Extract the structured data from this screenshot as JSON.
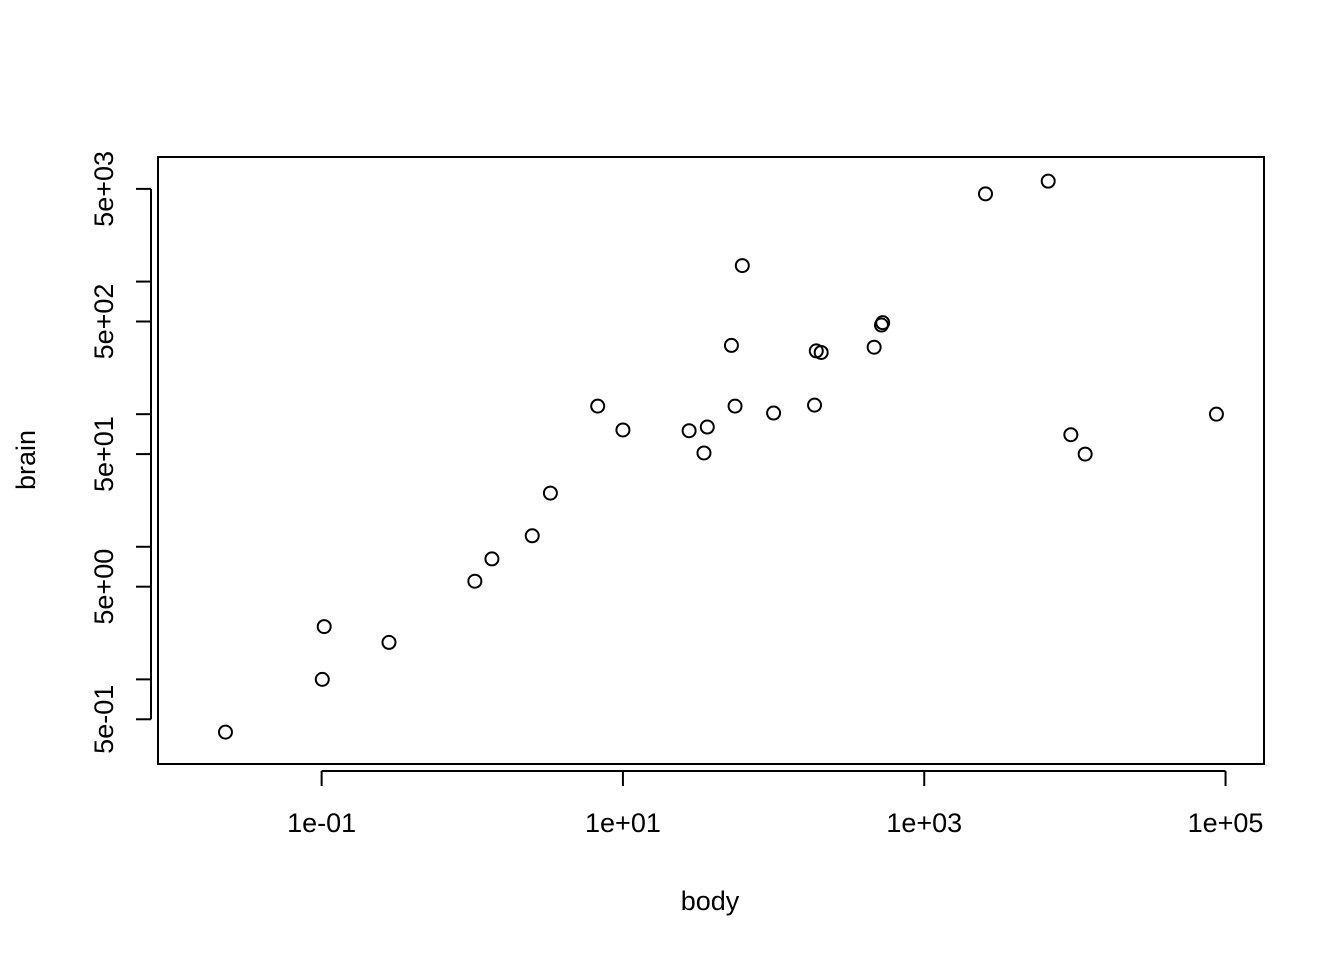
{
  "chart_data": {
    "type": "scatter",
    "title": "",
    "xlabel": "body",
    "ylabel": "brain",
    "x_scale": "log",
    "y_scale": "log",
    "xlim": [
      0.0082,
      180000
    ],
    "ylim": [
      0.23,
      8700
    ],
    "grid": false,
    "legend": "none",
    "x_ticks": [
      {
        "value": 0.1,
        "label": "1e-01"
      },
      {
        "value": 10,
        "label": "1e+01"
      },
      {
        "value": 1000,
        "label": "1e+03"
      },
      {
        "value": 100000,
        "label": "1e+05"
      }
    ],
    "y_ticks": [
      {
        "value": 0.5,
        "label": "5e-01"
      },
      {
        "value": 1,
        "label": ""
      },
      {
        "value": 5,
        "label": "5e+00"
      },
      {
        "value": 10,
        "label": ""
      },
      {
        "value": 50,
        "label": "5e+01"
      },
      {
        "value": 100,
        "label": ""
      },
      {
        "value": 500,
        "label": "5e+02"
      },
      {
        "value": 1000,
        "label": ""
      },
      {
        "value": 5000,
        "label": "5e+03"
      }
    ],
    "points": [
      {
        "x": 0.023,
        "y": 0.4
      },
      {
        "x": 0.104,
        "y": 2.5
      },
      {
        "x": 0.101,
        "y": 1.0
      },
      {
        "x": 0.28,
        "y": 1.9
      },
      {
        "x": 1.04,
        "y": 5.5
      },
      {
        "x": 1.35,
        "y": 8.1
      },
      {
        "x": 2.5,
        "y": 12.1
      },
      {
        "x": 3.3,
        "y": 25.4
      },
      {
        "x": 6.8,
        "y": 115
      },
      {
        "x": 10,
        "y": 76
      },
      {
        "x": 27.5,
        "y": 75
      },
      {
        "x": 34.5,
        "y": 51
      },
      {
        "x": 36.3,
        "y": 80
      },
      {
        "x": 52.5,
        "y": 330
      },
      {
        "x": 55.5,
        "y": 115
      },
      {
        "x": 62,
        "y": 1320
      },
      {
        "x": 100,
        "y": 102
      },
      {
        "x": 187,
        "y": 117
      },
      {
        "x": 192,
        "y": 300
      },
      {
        "x": 207,
        "y": 292
      },
      {
        "x": 465,
        "y": 320
      },
      {
        "x": 520,
        "y": 470
      },
      {
        "x": 530,
        "y": 490
      },
      {
        "x": 2550,
        "y": 4590
      },
      {
        "x": 6650,
        "y": 5720
      },
      {
        "x": 9400,
        "y": 70
      },
      {
        "x": 11700,
        "y": 50
      },
      {
        "x": 87000,
        "y": 100
      }
    ]
  }
}
